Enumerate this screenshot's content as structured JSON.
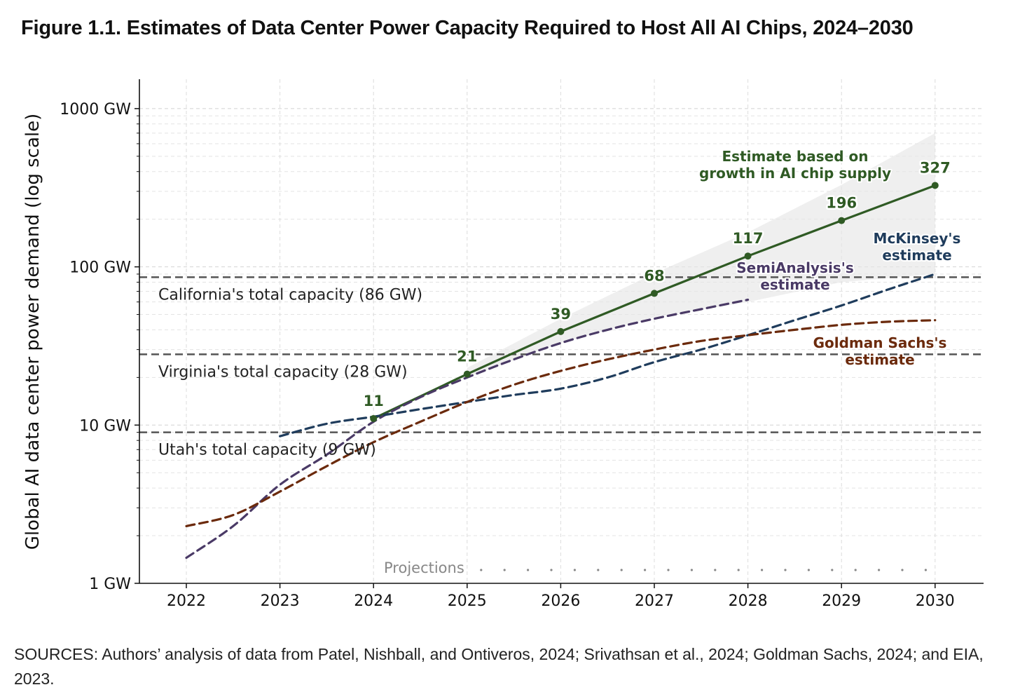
{
  "figure_title": "Figure 1.1. Estimates of Data Center Power Capacity Required to Host All AI Chips, 2024–2030",
  "sources": "SOURCES: Authors’ analysis of data from Patel, Nishball, and Ontiveros, 2024; Srivathsan et al., 2024; Goldman Sachs, 2024; and EIA, 2023.",
  "colors": {
    "chip_supply": "#2f5a24",
    "semianalysis": "#4a3a66",
    "mckinsey": "#1f3c5c",
    "goldman": "#6b2a0c",
    "reference": "#555555",
    "band": "#e6e6e6"
  },
  "chart_data": {
    "type": "line",
    "title": "Figure 1.1. Estimates of Data Center Power Capacity Required to Host All AI Chips, 2024–2030",
    "xlabel": "",
    "ylabel": "Global AI data center power demand (log scale)",
    "xlim": [
      2021.5,
      2030.5
    ],
    "ylim": [
      1,
      1500
    ],
    "yscale": "log",
    "grid": true,
    "x_ticks": [
      2022,
      2023,
      2024,
      2025,
      2026,
      2027,
      2028,
      2029,
      2030
    ],
    "x_tick_labels": [
      "2022",
      "2023",
      "2024",
      "2025",
      "2026",
      "2027",
      "2028",
      "2029",
      "2030"
    ],
    "y_ticks": [
      1,
      10,
      100,
      1000
    ],
    "y_tick_labels": [
      "1 GW",
      "10 GW",
      "100 GW",
      "1000 GW"
    ],
    "series": [
      {
        "name": "Estimate based on growth in AI chip supply",
        "key": "chip_supply",
        "style": "solid",
        "x": [
          2024,
          2025,
          2026,
          2027,
          2028,
          2029,
          2030
        ],
        "y": [
          11,
          21,
          39,
          68,
          117,
          196,
          327
        ],
        "labels": [
          "11",
          "21",
          "39",
          "68",
          "117",
          "196",
          "327"
        ],
        "band_x": [
          2025,
          2026,
          2027,
          2028,
          2029,
          2030
        ],
        "band_upper": [
          23,
          47,
          91,
          165,
          330,
          700
        ],
        "band_lower": [
          20,
          33,
          48,
          60,
          80,
          90
        ]
      },
      {
        "name": "SemiAnalysis's estimate",
        "key": "semianalysis",
        "style": "dashed",
        "x": [
          2022,
          2022.5,
          2023,
          2023.5,
          2024,
          2024.5,
          2025,
          2025.5,
          2026,
          2026.5,
          2027,
          2027.5,
          2028
        ],
        "y": [
          1.45,
          2.3,
          4.2,
          6.5,
          10.5,
          15,
          20,
          26,
          33,
          40,
          47,
          54,
          62
        ]
      },
      {
        "name": "McKinsey's estimate",
        "key": "mckinsey",
        "style": "dashed",
        "x": [
          2023,
          2023.5,
          2024,
          2024.5,
          2025,
          2025.5,
          2026,
          2026.5,
          2027,
          2027.5,
          2028,
          2028.5,
          2029,
          2029.5,
          2030
        ],
        "y": [
          8.5,
          10.2,
          11.3,
          12.6,
          14,
          15.5,
          17,
          20,
          25,
          30,
          37,
          46,
          57,
          72,
          90
        ]
      },
      {
        "name": "Goldman Sachs's estimate",
        "key": "goldman",
        "style": "dashed",
        "x": [
          2022,
          2022.5,
          2023,
          2023.5,
          2024,
          2024.5,
          2025,
          2025.5,
          2026,
          2026.5,
          2027,
          2027.5,
          2028,
          2028.5,
          2029,
          2029.5,
          2030
        ],
        "y": [
          2.3,
          2.7,
          3.8,
          5.5,
          7.8,
          10.5,
          14,
          18,
          22,
          26,
          30,
          34,
          37,
          40,
          43,
          45,
          46
        ]
      }
    ],
    "reference_lines": [
      {
        "label": "California's total capacity (86 GW)",
        "value": 86
      },
      {
        "label": "Virginia's total capacity (28 GW)",
        "value": 28
      },
      {
        "label": "Utah's total capacity (9 GW)",
        "value": 9
      }
    ],
    "annotations": {
      "projections": "Projections",
      "projections_start": 2025,
      "chip_supply_lines": [
        "Estimate based on",
        "growth in AI chip supply"
      ],
      "semianalysis_lines": [
        "SemiAnalysis's",
        "estimate"
      ],
      "mckinsey_lines": [
        "McKinsey's",
        "estimate"
      ],
      "goldman_lines": [
        "Goldman Sachs's",
        "estimate"
      ]
    }
  }
}
